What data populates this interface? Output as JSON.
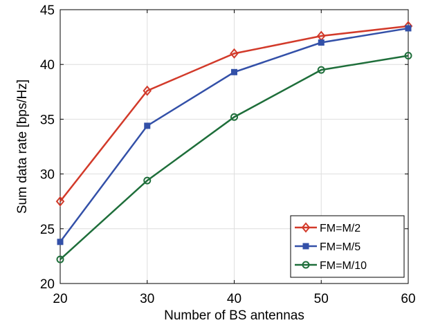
{
  "chart_data": {
    "type": "line",
    "title": "",
    "xlabel": "Number of BS antennas",
    "ylabel": "Sum data rate [bps/Hz]",
    "x": [
      20,
      30,
      40,
      50,
      60
    ],
    "xlim": [
      20,
      60
    ],
    "ylim": [
      20,
      45
    ],
    "xticks": [
      "20",
      "30",
      "40",
      "50",
      "60"
    ],
    "yticks": [
      "20",
      "25",
      "30",
      "35",
      "40",
      "45"
    ],
    "grid": true,
    "legend_position": "bottom-right",
    "series": [
      {
        "name": "FM=M/2",
        "color": "#d23a2a",
        "marker": "diamond",
        "values": [
          27.5,
          37.6,
          41.0,
          42.6,
          43.5
        ]
      },
      {
        "name": "FM=M/5",
        "color": "#3350a8",
        "marker": "square",
        "values": [
          23.8,
          34.4,
          39.3,
          42.0,
          43.3
        ]
      },
      {
        "name": "FM=M/10",
        "color": "#1e6e3a",
        "marker": "circle",
        "values": [
          22.2,
          29.4,
          35.2,
          39.5,
          40.8
        ]
      }
    ]
  }
}
